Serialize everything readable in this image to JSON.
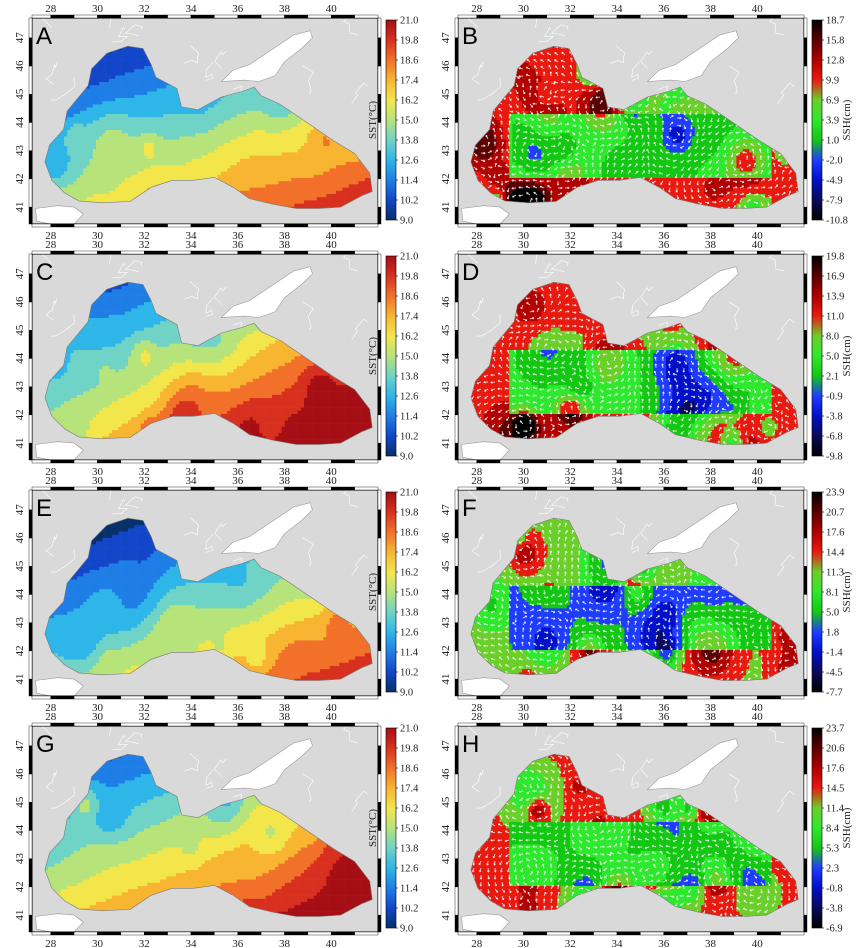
{
  "lon_ticks": [
    "28",
    "30",
    "32",
    "34",
    "36",
    "38",
    "40"
  ],
  "lat_ticks": [
    "41",
    "42",
    "43",
    "44",
    "45",
    "46",
    "47"
  ],
  "panels": [
    {
      "id": "A",
      "field": "sst",
      "label": "A",
      "colorbar_title": "SST(°C)",
      "colorbar_ticks": [
        "21.0",
        "19.8",
        "18.6",
        "17.4",
        "16.2",
        "15.0",
        "13.8",
        "12.6",
        "11.4",
        "10.2",
        "9.0"
      ],
      "palette": [
        "#08306b",
        "#1346c8",
        "#1e7ee6",
        "#2fb6e8",
        "#6fd3c6",
        "#b6e37a",
        "#f2e64a",
        "#f7b531",
        "#f2712a",
        "#d7301f",
        "#a50f15"
      ],
      "bias": 0.0,
      "gradient": 0.5
    },
    {
      "id": "B",
      "field": "ssh",
      "label": "B",
      "colorbar_title": "SSH(cm)",
      "colorbar_ticks": [
        "18.7",
        "15.8",
        "12.8",
        "9.9",
        "6.9",
        "3.9",
        "1.0",
        "-2.0",
        "-4.9",
        "-7.9",
        "-10.8"
      ],
      "palette": [
        "#000000",
        "#0a0a5a",
        "#0010c8",
        "#1f3cff",
        "#13c713",
        "#2ee82e",
        "#6bcf2a",
        "#e81a10",
        "#b00000",
        "#5a0000",
        "#000000"
      ],
      "bias": 0.0
    },
    {
      "id": "C",
      "field": "sst",
      "label": "C",
      "colorbar_title": "SST(°C)",
      "colorbar_ticks": [
        "21.0",
        "19.8",
        "18.6",
        "17.4",
        "16.2",
        "15.0",
        "13.8",
        "12.6",
        "11.4",
        "10.2",
        "9.0"
      ],
      "palette": [
        "#08306b",
        "#1346c8",
        "#1e7ee6",
        "#2fb6e8",
        "#6fd3c6",
        "#b6e37a",
        "#f2e64a",
        "#f7b531",
        "#f2712a",
        "#d7301f",
        "#a50f15"
      ],
      "bias": 0.12,
      "gradient": 0.75
    },
    {
      "id": "D",
      "field": "ssh",
      "label": "D",
      "colorbar_title": "SSH(cm)",
      "colorbar_ticks": [
        "19.8",
        "16.9",
        "13.9",
        "11.0",
        "8.0",
        "5.0",
        "2.1",
        "-0.9",
        "-3.8",
        "-6.8",
        "-9.8"
      ],
      "palette": [
        "#000000",
        "#0a0a5a",
        "#0010c8",
        "#1f3cff",
        "#13c713",
        "#2ee82e",
        "#6bcf2a",
        "#e81a10",
        "#b00000",
        "#5a0000",
        "#000000"
      ],
      "bias": 0.05
    },
    {
      "id": "E",
      "field": "sst",
      "label": "E",
      "colorbar_title": "SST(°C)",
      "colorbar_ticks": [
        "21.0",
        "19.8",
        "18.6",
        "17.4",
        "16.2",
        "15.0",
        "13.8",
        "12.6",
        "11.4",
        "10.2",
        "9.0"
      ],
      "palette": [
        "#08306b",
        "#1346c8",
        "#1e7ee6",
        "#2fb6e8",
        "#6fd3c6",
        "#b6e37a",
        "#f2e64a",
        "#f7b531",
        "#f2712a",
        "#d7301f",
        "#a50f15"
      ],
      "bias": -0.03,
      "gradient": 0.55
    },
    {
      "id": "F",
      "field": "ssh",
      "label": "F",
      "colorbar_title": "SSH(cm)",
      "colorbar_ticks": [
        "23.9",
        "20.7",
        "17.6",
        "14.4",
        "11.3",
        "8.1",
        "5.0",
        "1.8",
        "-1.4",
        "-4.5",
        "-7.7"
      ],
      "palette": [
        "#000000",
        "#0a0a5a",
        "#0010c8",
        "#1f3cff",
        "#13c713",
        "#2ee82e",
        "#6bcf2a",
        "#e81a10",
        "#b00000",
        "#5a0000",
        "#000000"
      ],
      "bias": -0.02
    },
    {
      "id": "G",
      "field": "sst",
      "label": "G",
      "colorbar_title": "SST(°C)",
      "colorbar_ticks": [
        "21.0",
        "19.8",
        "18.6",
        "17.4",
        "16.2",
        "15.0",
        "13.8",
        "12.6",
        "11.4",
        "10.2",
        "9.0"
      ],
      "palette": [
        "#08306b",
        "#1346c8",
        "#1e7ee6",
        "#2fb6e8",
        "#6fd3c6",
        "#b6e37a",
        "#f2e64a",
        "#f7b531",
        "#f2712a",
        "#d7301f",
        "#a50f15"
      ],
      "bias": 0.1,
      "gradient": 0.55
    },
    {
      "id": "H",
      "field": "ssh",
      "label": "H",
      "colorbar_title": "SSH(cm)",
      "colorbar_ticks": [
        "23.7",
        "20.6",
        "17.6",
        "14.5",
        "11.4",
        "8.4",
        "5.3",
        "2.3",
        "-0.8",
        "-3.8",
        "-6.9"
      ],
      "palette": [
        "#000000",
        "#0a0a5a",
        "#0010c8",
        "#1f3cff",
        "#13c713",
        "#2ee82e",
        "#6bcf2a",
        "#e81a10",
        "#b00000",
        "#5a0000",
        "#000000"
      ],
      "bias": 0.02
    }
  ],
  "colors": {
    "land": "#d9d9d9",
    "land_white": "#ffffff",
    "frame": "#000000",
    "arrow": "#ffffff"
  }
}
